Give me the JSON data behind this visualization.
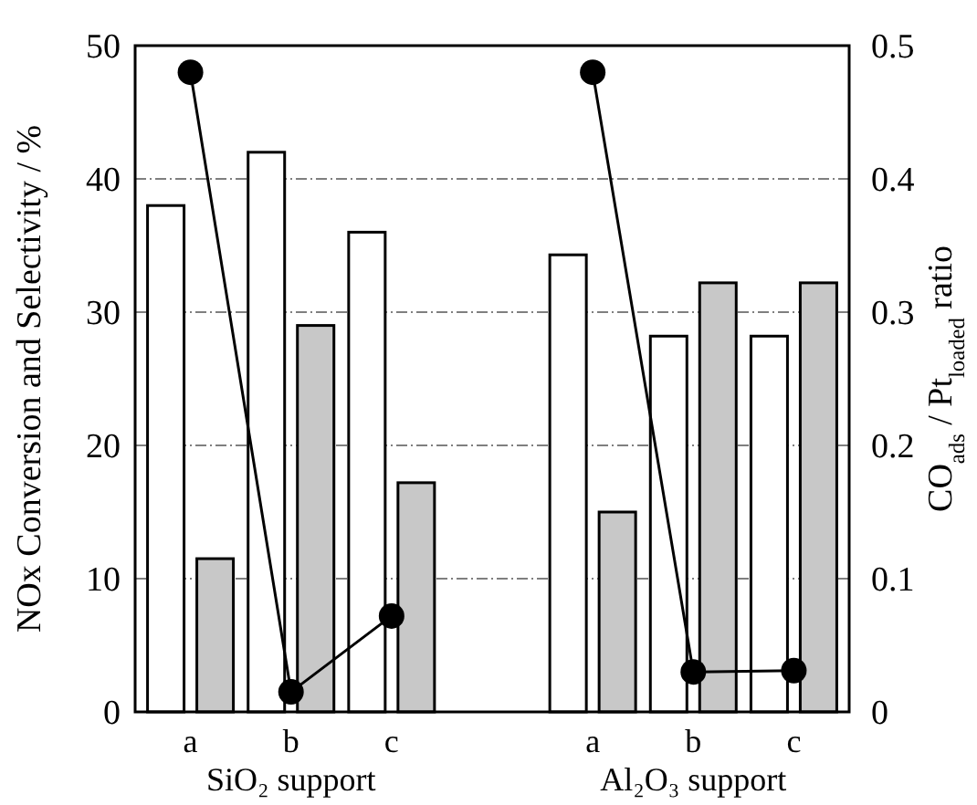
{
  "chart_data": {
    "type": "bar",
    "categories": [
      "a",
      "b",
      "c",
      null,
      "a",
      "b",
      "c"
    ],
    "series": [
      {
        "color": "#ffffff",
        "values": [
          38,
          42,
          36,
          null,
          34.3,
          28.2,
          28.2
        ]
      },
      {
        "color": "#c8c8c8",
        "values": [
          11.5,
          29,
          17.2,
          null,
          15,
          32.2,
          32.2
        ]
      },
      {
        "type": "line",
        "axis": "y2",
        "color": "#000000",
        "marker": "circle",
        "line_style": "solid",
        "values": [
          0.48,
          0.015,
          0.072,
          null,
          0.48,
          0.03,
          0.031
        ]
      }
    ],
    "ylabel": "NOx Conversion and Selectivity / %",
    "y2label": "CO$_{ads}$ / Pt$_{loaded}$ ratio",
    "ylim": [
      0,
      50
    ],
    "yticks": [
      0,
      10,
      20,
      30,
      40,
      50
    ],
    "y2lim": [
      0,
      0.5
    ],
    "y2ticks": [
      0,
      0.1,
      0.2,
      0.3,
      0.4,
      0.5
    ],
    "grid": "y",
    "annotations": [
      "SiO₂ support",
      "Al₂O₃ support"
    ]
  }
}
